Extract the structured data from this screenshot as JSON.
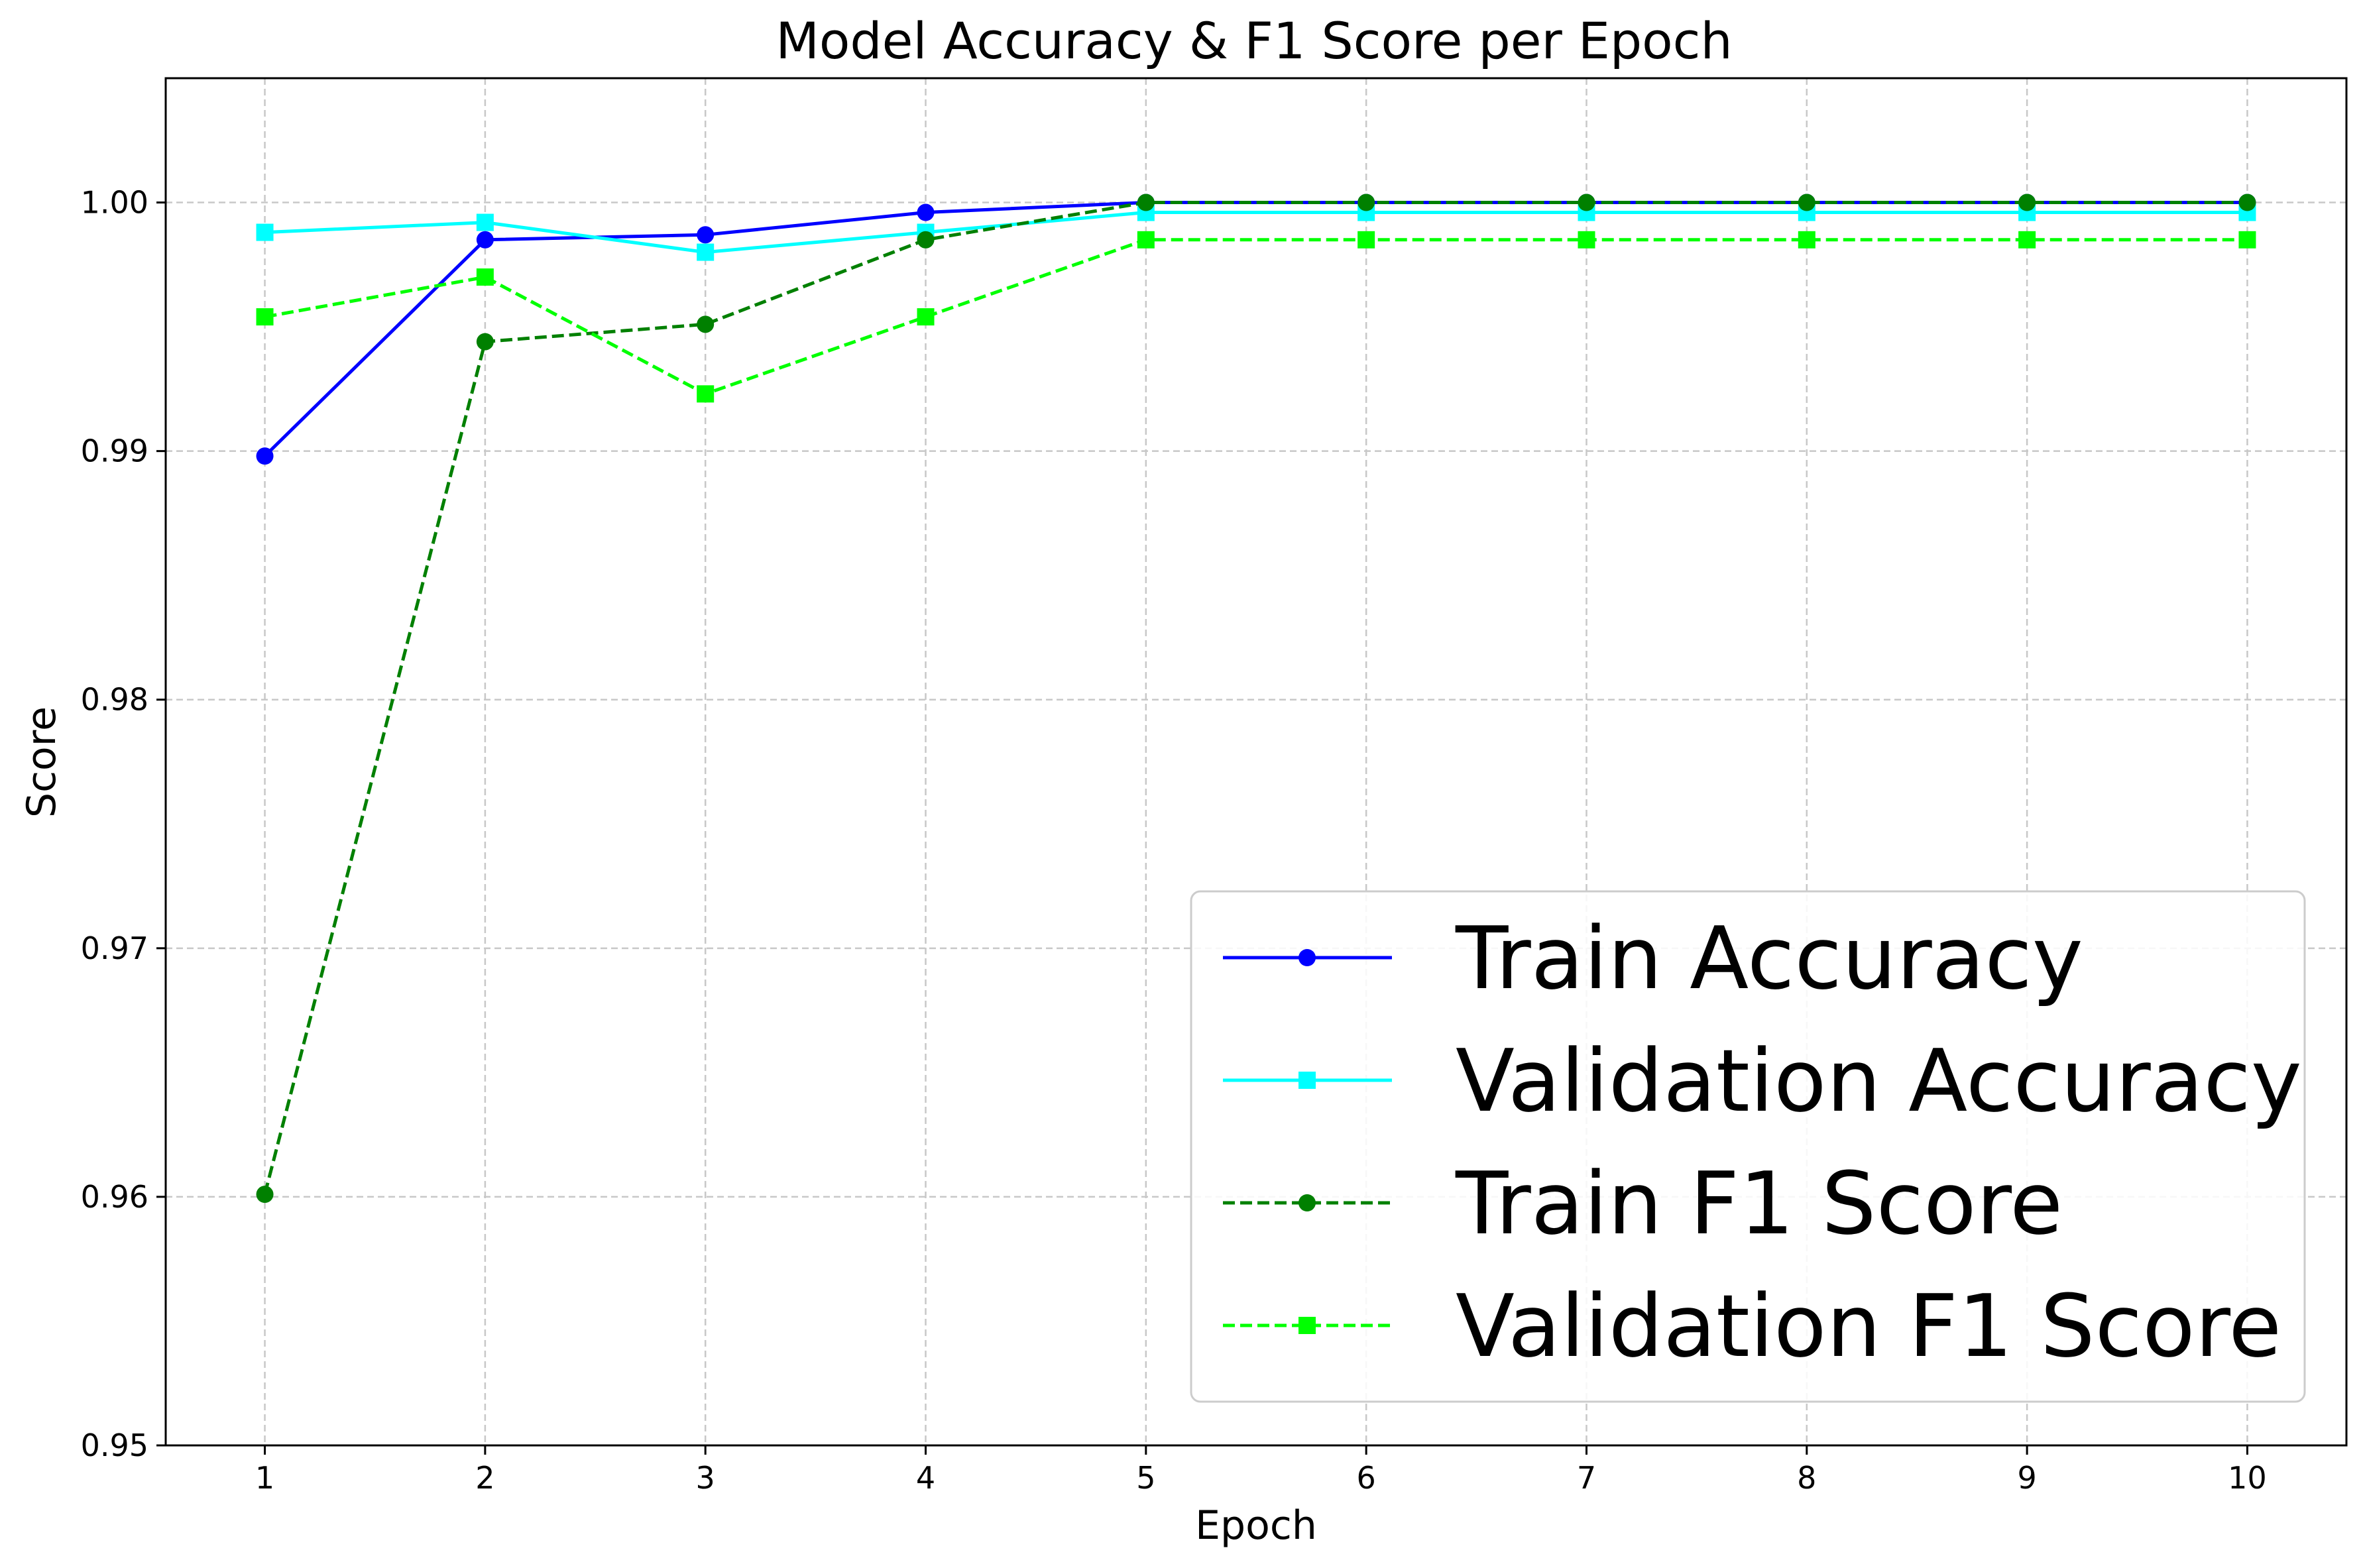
{
  "chart_data": {
    "type": "line",
    "title": "Model Accuracy & F1 Score per Epoch",
    "xlabel": "Epoch",
    "ylabel": "Score",
    "x": [
      1,
      2,
      3,
      4,
      5,
      6,
      7,
      8,
      9,
      10
    ],
    "xlim": [
      0.55,
      10.45
    ],
    "ylim": [
      0.95,
      1.005
    ],
    "xticks": [
      "1",
      "2",
      "3",
      "4",
      "5",
      "6",
      "7",
      "8",
      "9",
      "10"
    ],
    "yticks": [
      "0.95",
      "0.96",
      "0.97",
      "0.98",
      "0.99",
      "1.00"
    ],
    "grid": true,
    "legend_position": "lower-right",
    "series": [
      {
        "name": "Train Accuracy",
        "color": "#0000ff",
        "linestyle": "solid",
        "marker": "circle",
        "values": [
          0.9898,
          0.9985,
          0.9987,
          0.9996,
          1.0,
          1.0,
          1.0,
          1.0,
          1.0,
          1.0
        ]
      },
      {
        "name": "Validation Accuracy",
        "color": "#00ffff",
        "linestyle": "solid",
        "marker": "square",
        "values": [
          0.9988,
          0.9992,
          0.998,
          0.9988,
          0.9996,
          0.9996,
          0.9996,
          0.9996,
          0.9996,
          0.9996
        ]
      },
      {
        "name": "Train F1 Score",
        "color": "#008000",
        "linestyle": "dashed",
        "marker": "circle",
        "values": [
          0.9601,
          0.9944,
          0.9951,
          0.9985,
          1.0,
          1.0,
          1.0,
          1.0,
          1.0,
          1.0
        ]
      },
      {
        "name": "Validation F1 Score",
        "color": "#00ff00",
        "linestyle": "dashed",
        "marker": "square",
        "values": [
          0.9954,
          0.997,
          0.9923,
          0.9954,
          0.9985,
          0.9985,
          0.9985,
          0.9985,
          0.9985,
          0.9985
        ]
      }
    ]
  }
}
